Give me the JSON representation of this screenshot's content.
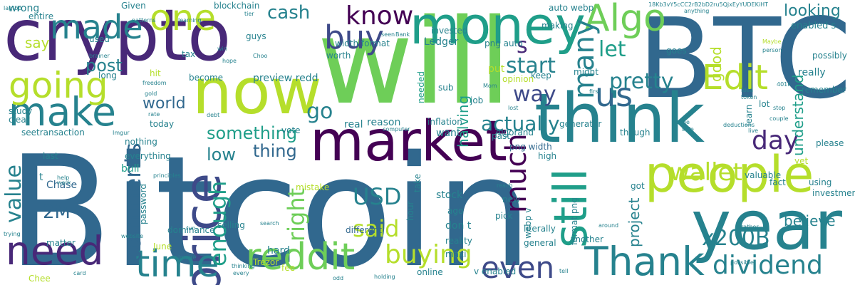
{
  "palette": [
    "#440154",
    "#482878",
    "#3e4a89",
    "#31688e",
    "#26828e",
    "#1f9e89",
    "#35b779",
    "#6ece58",
    "#b5de2b",
    "#fde725"
  ],
  "words": [
    {
      "text": "Bitcoin",
      "color": "#31688e",
      "vertical": false
    },
    {
      "text": "will",
      "color": "#6ece58",
      "vertical": false
    },
    {
      "text": "BTC",
      "color": "#31688e",
      "vertical": false
    },
    {
      "text": "crypto",
      "color": "#482878",
      "vertical": false
    },
    {
      "text": "think",
      "color": "#26828e",
      "vertical": false
    },
    {
      "text": "year",
      "color": "#26828e",
      "vertical": false
    },
    {
      "text": "now",
      "color": "#b5de2b",
      "vertical": false
    },
    {
      "text": "market",
      "color": "#440154",
      "vertical": false
    },
    {
      "text": "people",
      "color": "#b5de2b",
      "vertical": false
    },
    {
      "text": "money",
      "color": "#1f9e89",
      "vertical": false
    },
    {
      "text": "price",
      "color": "#3e4a89",
      "vertical": true
    },
    {
      "text": "still",
      "color": "#1f9e89",
      "vertical": true
    },
    {
      "text": "Thank",
      "color": "#26828e",
      "vertical": false
    },
    {
      "text": "make",
      "color": "#26828e",
      "vertical": false
    },
    {
      "text": "need",
      "color": "#482878",
      "vertical": false
    },
    {
      "text": "reddit",
      "color": "#6ece58",
      "vertical": false
    },
    {
      "text": "time",
      "color": "#26828e",
      "vertical": false
    },
    {
      "text": "going",
      "color": "#b5de2b",
      "vertical": false
    },
    {
      "text": "Edit",
      "color": "#b5de2b",
      "vertical": false
    },
    {
      "text": "Algo",
      "color": "#6ece58",
      "vertical": false
    },
    {
      "text": "one",
      "color": "#b5de2b",
      "vertical": false
    },
    {
      "text": "made",
      "color": "#26828e",
      "vertical": false
    },
    {
      "text": "us",
      "color": "#31688e",
      "vertical": false
    },
    {
      "text": "buy",
      "color": "#3e4a89",
      "vertical": false
    },
    {
      "text": "even",
      "color": "#3e4a89",
      "vertical": false
    },
    {
      "text": "much",
      "color": "#440154",
      "vertical": true
    },
    {
      "text": "many",
      "color": "#26828e",
      "vertical": true
    },
    {
      "text": "buying",
      "color": "#b5de2b",
      "vertical": false
    },
    {
      "text": "dividend",
      "color": "#26828e",
      "vertical": false
    },
    {
      "text": "enough",
      "color": "#1f9e89",
      "vertical": true
    },
    {
      "text": "right",
      "color": "#6ece58",
      "vertical": true
    },
    {
      "text": "comments",
      "color": "#31688e",
      "vertical": true
    },
    {
      "text": "value",
      "color": "#26828e",
      "vertical": true
    },
    {
      "text": "know",
      "color": "#440154",
      "vertical": false
    },
    {
      "text": "wallet",
      "color": "#b5de2b",
      "vertical": false
    },
    {
      "text": "day",
      "color": "#482878",
      "vertical": false
    },
    {
      "text": "USD",
      "color": "#26828e",
      "vertical": false
    },
    {
      "text": "said",
      "color": "#b5de2b",
      "vertical": false
    },
    {
      "text": "x200B",
      "color": "#26828e",
      "vertical": false
    },
    {
      "text": "go",
      "color": "#26828e",
      "vertical": false
    },
    {
      "text": "let",
      "color": "#1f9e89",
      "vertical": false
    },
    {
      "text": "s",
      "color": "#482878",
      "vertical": false
    },
    {
      "text": "start",
      "color": "#26828e",
      "vertical": false
    },
    {
      "text": "pretty",
      "color": "#26828e",
      "vertical": false
    },
    {
      "text": "way",
      "color": "#3e4a89",
      "vertical": false
    },
    {
      "text": "actually",
      "color": "#26828e",
      "vertical": false
    },
    {
      "text": "something",
      "color": "#1f9e89",
      "vertical": false
    },
    {
      "text": "thing",
      "color": "#31688e",
      "vertical": false
    },
    {
      "text": "low",
      "color": "#26828e",
      "vertical": false
    },
    {
      "text": "cash",
      "color": "#26828e",
      "vertical": false
    },
    {
      "text": "post",
      "color": "#26828e",
      "vertical": false
    },
    {
      "text": "good",
      "color": "#b5de2b",
      "vertical": true
    },
    {
      "text": "understand",
      "color": "#1f9e89",
      "vertical": true
    },
    {
      "text": "believe",
      "color": "#26828e",
      "vertical": false
    },
    {
      "text": "project",
      "color": "#26828e",
      "vertical": true
    },
    {
      "text": "halving",
      "color": "#1f9e89",
      "vertical": true
    },
    {
      "text": "world",
      "color": "#31688e",
      "vertical": false
    },
    {
      "text": "looking",
      "color": "#26828e",
      "vertical": false
    },
    {
      "text": "2M",
      "color": "#31688e",
      "vertical": false
    },
    {
      "text": "say",
      "color": "#b5de2b",
      "vertical": false
    },
    {
      "text": "preview redd",
      "color": "#26828e",
      "vertical": false
    },
    {
      "text": "enabled s",
      "color": "#26828e",
      "vertical": false
    },
    {
      "text": "really",
      "color": "#26828e",
      "vertical": false
    },
    {
      "text": "Chase",
      "color": "#31688e",
      "vertical": false
    },
    {
      "text": "wrong",
      "color": "#26828e",
      "vertical": false
    },
    {
      "text": "blockchain",
      "color": "#26828e",
      "vertical": false
    },
    {
      "text": "png width",
      "color": "#31688e",
      "vertical": false
    },
    {
      "text": "stock",
      "color": "#26828e",
      "vertical": false
    },
    {
      "text": "different",
      "color": "#31688e",
      "vertical": false
    },
    {
      "text": "pick",
      "color": "#26828e",
      "vertical": false
    },
    {
      "text": "reality",
      "color": "#26828e",
      "vertical": false
    },
    {
      "text": "ago",
      "color": "#26828e",
      "vertical": false
    },
    {
      "text": "don t",
      "color": "#26828e",
      "vertical": false
    },
    {
      "text": "maxi",
      "color": "#26828e",
      "vertical": false
    },
    {
      "text": "want",
      "color": "#26828e",
      "vertical": false
    },
    {
      "text": "past",
      "color": "#26828e",
      "vertical": false
    },
    {
      "text": "inflation",
      "color": "#26828e",
      "vertical": false
    },
    {
      "text": "reason",
      "color": "#26828e",
      "vertical": false
    },
    {
      "text": "real",
      "color": "#26828e",
      "vertical": false
    },
    {
      "text": "vote",
      "color": "#26828e",
      "vertical": false
    },
    {
      "text": "nothing",
      "color": "#26828e",
      "vertical": false
    },
    {
      "text": "everything",
      "color": "#26828e",
      "vertical": false
    },
    {
      "text": "bull",
      "color": "#1f9e89",
      "vertical": false
    },
    {
      "text": "last",
      "color": "#26828e",
      "vertical": false
    },
    {
      "text": "t",
      "color": "#26828e",
      "vertical": false
    },
    {
      "text": "seetransaction",
      "color": "#26828e",
      "vertical": false
    },
    {
      "text": "study",
      "color": "#26828e",
      "vertical": false
    },
    {
      "text": "clear",
      "color": "#26828e",
      "vertical": false
    },
    {
      "text": "long",
      "color": "#26828e",
      "vertical": false
    },
    {
      "text": "used",
      "color": "#26828e",
      "vertical": false
    },
    {
      "text": "entire",
      "color": "#26828e",
      "vertical": false
    },
    {
      "text": "Given",
      "color": "#26828e",
      "vertical": false
    },
    {
      "text": "guys",
      "color": "#26828e",
      "vertical": false
    },
    {
      "text": "tax",
      "color": "#26828e",
      "vertical": false
    },
    {
      "text": "become",
      "color": "#26828e",
      "vertical": false
    },
    {
      "text": "hit",
      "color": "#b5de2b",
      "vertical": false
    },
    {
      "text": "today",
      "color": "#26828e",
      "vertical": false
    },
    {
      "text": "Ledger",
      "color": "#26828e",
      "vertical": false
    },
    {
      "text": "worth",
      "color": "#26828e",
      "vertical": false
    },
    {
      "text": "width format",
      "color": "#26828e",
      "vertical": false
    },
    {
      "text": "invested",
      "color": "#26828e",
      "vertical": false
    },
    {
      "text": "auto webp",
      "color": "#26828e",
      "vertical": false
    },
    {
      "text": "png auto",
      "color": "#26828e",
      "vertical": false
    },
    {
      "text": "making",
      "color": "#26828e",
      "vertical": false
    },
    {
      "text": "goes",
      "color": "#26828e",
      "vertical": false
    },
    {
      "text": "keep",
      "color": "#26828e",
      "vertical": false
    },
    {
      "text": "put",
      "color": "#b5de2b",
      "vertical": false
    },
    {
      "text": "opinion",
      "color": "#b5de2b",
      "vertical": false
    },
    {
      "text": "sub",
      "color": "#26828e",
      "vertical": false
    },
    {
      "text": "job",
      "color": "#26828e",
      "vertical": false
    },
    {
      "text": "needed",
      "color": "#1f9e89",
      "vertical": true
    },
    {
      "text": "though",
      "color": "#26828e",
      "vertical": false
    },
    {
      "text": "generator",
      "color": "#26828e",
      "vertical": false
    },
    {
      "text": "Algorand",
      "color": "#26828e",
      "vertical": false
    },
    {
      "text": "high",
      "color": "#26828e",
      "vertical": false
    },
    {
      "text": "learn",
      "color": "#26828e",
      "vertical": true
    },
    {
      "text": "lot",
      "color": "#26828e",
      "vertical": false
    },
    {
      "text": "remember",
      "color": "#26828e",
      "vertical": false
    },
    {
      "text": "possibly",
      "color": "#26828e",
      "vertical": false
    },
    {
      "text": "fact",
      "color": "#26828e",
      "vertical": false
    },
    {
      "text": "using",
      "color": "#26828e",
      "vertical": false
    },
    {
      "text": "investment",
      "color": "#26828e",
      "vertical": false
    },
    {
      "text": "please",
      "color": "#26828e",
      "vertical": false
    },
    {
      "text": "yet",
      "color": "#b5de2b",
      "vertical": false
    },
    {
      "text": "valuable",
      "color": "#26828e",
      "vertical": false
    },
    {
      "text": "another",
      "color": "#26828e",
      "vertical": false
    },
    {
      "text": "literally",
      "color": "#26828e",
      "vertical": false
    },
    {
      "text": "general",
      "color": "#26828e",
      "vertical": false
    },
    {
      "text": "new",
      "color": "#26828e",
      "vertical": false
    },
    {
      "text": "hour",
      "color": "#26828e",
      "vertical": true
    },
    {
      "text": "take",
      "color": "#26828e",
      "vertical": true
    },
    {
      "text": "mistake",
      "color": "#b5de2b",
      "vertical": false
    },
    {
      "text": "selling",
      "color": "#26828e",
      "vertical": false
    },
    {
      "text": "dominance",
      "color": "#26828e",
      "vertical": false
    },
    {
      "text": "password",
      "color": "#26828e",
      "vertical": true
    },
    {
      "text": "June",
      "color": "#b5de2b",
      "vertical": false
    },
    {
      "text": "matter",
      "color": "#26828e",
      "vertical": false
    },
    {
      "text": "Trezor",
      "color": "#b5de2b",
      "vertical": false
    },
    {
      "text": "hard",
      "color": "#26828e",
      "vertical": false
    },
    {
      "text": "online",
      "color": "#26828e",
      "vertical": false
    },
    {
      "text": "v enabled",
      "color": "#26828e",
      "vertical": false
    },
    {
      "text": "webp v",
      "color": "#26828e",
      "vertical": true
    },
    {
      "text": "format png",
      "color": "#26828e",
      "vertical": true
    },
    {
      "text": "got",
      "color": "#26828e",
      "vertical": false
    },
    {
      "text": "fee",
      "color": "#b5de2b",
      "vertical": false
    },
    {
      "text": "Chee",
      "color": "#b5de2b",
      "vertical": false
    },
    {
      "text": "might",
      "color": "#26828e",
      "vertical": false
    },
    {
      "text": "laptop",
      "color": "#26828e",
      "vertical": false
    },
    {
      "text": "patterns",
      "color": "#26828e",
      "vertical": false
    },
    {
      "text": "learning",
      "color": "#26828e",
      "vertical": false
    },
    {
      "text": "tier",
      "color": "#26828e",
      "vertical": false
    },
    {
      "text": "seen",
      "color": "#26828e",
      "vertical": false
    },
    {
      "text": "Bank",
      "color": "#26828e",
      "vertical": false
    },
    {
      "text": "anything",
      "color": "#26828e",
      "vertical": false
    },
    {
      "text": "brainer",
      "color": "#26828e",
      "vertical": false
    },
    {
      "text": "Choo",
      "color": "#26828e",
      "vertical": false
    },
    {
      "text": "win",
      "color": "#26828e",
      "vertical": false
    },
    {
      "text": "hope",
      "color": "#26828e",
      "vertical": false
    },
    {
      "text": "freedom",
      "color": "#26828e",
      "vertical": false
    },
    {
      "text": "gold",
      "color": "#26828e",
      "vertical": false
    },
    {
      "text": "rate",
      "color": "#26828e",
      "vertical": false
    },
    {
      "text": "debt",
      "color": "#26828e",
      "vertical": false
    },
    {
      "text": "lost",
      "color": "#26828e",
      "vertical": false
    },
    {
      "text": "first",
      "color": "#26828e",
      "vertical": false
    },
    {
      "text": "idea",
      "color": "#26828e",
      "vertical": false
    },
    {
      "text": "token",
      "color": "#26828e",
      "vertical": false
    },
    {
      "text": "person",
      "color": "#26828e",
      "vertical": false
    },
    {
      "text": "401k",
      "color": "#26828e",
      "vertical": false
    },
    {
      "text": "Maybe",
      "color": "#b5de2b",
      "vertical": false
    },
    {
      "text": "stop",
      "color": "#26828e",
      "vertical": false
    },
    {
      "text": "couple",
      "color": "#26828e",
      "vertical": false
    },
    {
      "text": "live",
      "color": "#26828e",
      "vertical": false
    },
    {
      "text": "deductions",
      "color": "#26828e",
      "vertical": false
    },
    {
      "text": "safe",
      "color": "#26828e",
      "vertical": false
    },
    {
      "text": "type",
      "color": "#26828e",
      "vertical": false
    },
    {
      "text": "computer",
      "color": "#26828e",
      "vertical": false
    },
    {
      "text": "Imgur",
      "color": "#26828e",
      "vertical": false
    },
    {
      "text": "work",
      "color": "#26828e",
      "vertical": false
    },
    {
      "text": "help",
      "color": "#26828e",
      "vertical": false
    },
    {
      "text": "principles",
      "color": "#26828e",
      "vertical": false
    },
    {
      "text": "run",
      "color": "#26828e",
      "vertical": false
    },
    {
      "text": "search",
      "color": "#26828e",
      "vertical": false
    },
    {
      "text": "reach",
      "color": "#26828e",
      "vertical": false
    },
    {
      "text": "around",
      "color": "#26828e",
      "vertical": false
    },
    {
      "text": "rather",
      "color": "#26828e",
      "vertical": false
    },
    {
      "text": "website",
      "color": "#26828e",
      "vertical": false
    },
    {
      "text": "ignore",
      "color": "#26828e",
      "vertical": false
    },
    {
      "text": "trying",
      "color": "#26828e",
      "vertical": false
    },
    {
      "text": "thinking",
      "color": "#26828e",
      "vertical": false
    },
    {
      "text": "every",
      "color": "#26828e",
      "vertical": false
    },
    {
      "text": "odd",
      "color": "#26828e",
      "vertical": false
    },
    {
      "text": "holding",
      "color": "#26828e",
      "vertical": false
    },
    {
      "text": "tell",
      "color": "#26828e",
      "vertical": false
    },
    {
      "text": "possible",
      "color": "#26828e",
      "vertical": false
    },
    {
      "text": "card",
      "color": "#26828e",
      "vertical": false
    },
    {
      "text": "Mom",
      "color": "#26828e",
      "vertical": false
    },
    {
      "text": "18Kb3vY5cCC2rB2bD2ru5QjxEyYUDEKiHT",
      "color": "#26828e",
      "vertical": false
    }
  ]
}
